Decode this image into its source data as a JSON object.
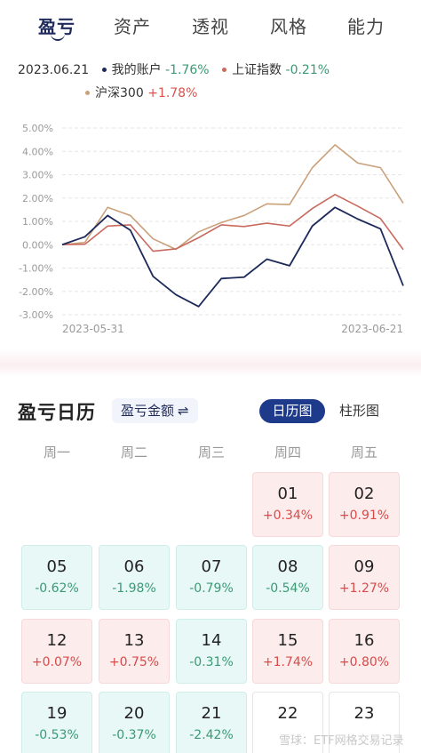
{
  "tabs": [
    "盈亏",
    "资产",
    "透视",
    "风格",
    "能力"
  ],
  "legend": {
    "date": "2023.06.21",
    "account_label": "我的账户",
    "account_value": "-1.76%",
    "sh_label": "上证指数",
    "sh_value": "-0.21%",
    "hs300_label": "沪深300",
    "hs300_value": "+1.78%"
  },
  "colors": {
    "account": "#1e2a5a",
    "sh": "#c96a5e",
    "hs300": "#c9a07a",
    "accent": "#1e3a8a",
    "up": "#d94a4a",
    "down": "#3a9a74"
  },
  "chart_data": {
    "type": "line",
    "x": [
      "2023-05-31",
      "2023-06-01",
      "2023-06-02",
      "2023-06-05",
      "2023-06-06",
      "2023-06-07",
      "2023-06-08",
      "2023-06-09",
      "2023-06-12",
      "2023-06-13",
      "2023-06-14",
      "2023-06-15",
      "2023-06-16",
      "2023-06-19",
      "2023-06-20",
      "2023-06-21"
    ],
    "xtick_labels": [
      "2023-05-31",
      "2023-06-21"
    ],
    "ytick_labels": [
      "5.00%",
      "4.00%",
      "3.00%",
      "2.00%",
      "1.00%",
      "0.00%",
      "-1.00%",
      "-2.00%",
      "-3.00%"
    ],
    "ylim": [
      -3,
      5
    ],
    "grid": true,
    "series": [
      {
        "name": "我的账户",
        "values": [
          0,
          0.34,
          1.25,
          0.62,
          -1.36,
          -2.14,
          -2.65,
          -1.45,
          -1.39,
          -0.62,
          -0.9,
          0.8,
          1.6,
          1.1,
          0.68,
          -1.76
        ]
      },
      {
        "name": "上证指数",
        "values": [
          0,
          0.02,
          0.8,
          0.85,
          -0.28,
          -0.18,
          0.3,
          0.85,
          0.78,
          0.92,
          0.8,
          1.55,
          2.15,
          1.65,
          1.12,
          -0.21
        ]
      },
      {
        "name": "沪深300",
        "values": [
          0,
          0.1,
          1.6,
          1.25,
          0.25,
          -0.2,
          0.55,
          0.95,
          1.25,
          1.75,
          1.72,
          3.3,
          4.28,
          3.5,
          3.3,
          1.78
        ]
      }
    ]
  },
  "calendar": {
    "title": "盈亏日历",
    "amount_toggle": "盈亏金额",
    "view_calendar": "日历图",
    "view_bar": "柱形图",
    "weekdays": [
      "周一",
      "周二",
      "周三",
      "周四",
      "周五"
    ],
    "days": [
      {
        "day": "01",
        "change": "+0.34%",
        "dir": "up"
      },
      {
        "day": "02",
        "change": "+0.91%",
        "dir": "up"
      },
      {
        "day": "05",
        "change": "-0.62%",
        "dir": "down"
      },
      {
        "day": "06",
        "change": "-1.98%",
        "dir": "down"
      },
      {
        "day": "07",
        "change": "-0.79%",
        "dir": "down"
      },
      {
        "day": "08",
        "change": "-0.54%",
        "dir": "down"
      },
      {
        "day": "09",
        "change": "+1.27%",
        "dir": "up"
      },
      {
        "day": "12",
        "change": "+0.07%",
        "dir": "up"
      },
      {
        "day": "13",
        "change": "+0.75%",
        "dir": "up"
      },
      {
        "day": "14",
        "change": "-0.31%",
        "dir": "down"
      },
      {
        "day": "15",
        "change": "+1.74%",
        "dir": "up"
      },
      {
        "day": "16",
        "change": "+0.80%",
        "dir": "up"
      },
      {
        "day": "19",
        "change": "-0.53%",
        "dir": "down"
      },
      {
        "day": "20",
        "change": "-0.37%",
        "dir": "down"
      },
      {
        "day": "21",
        "change": "-2.42%",
        "dir": "down"
      },
      {
        "day": "22",
        "change": "",
        "dir": "empty"
      },
      {
        "day": "23",
        "change": "",
        "dir": "empty"
      }
    ]
  },
  "watermark": "雪球：ETF网格交易记录"
}
